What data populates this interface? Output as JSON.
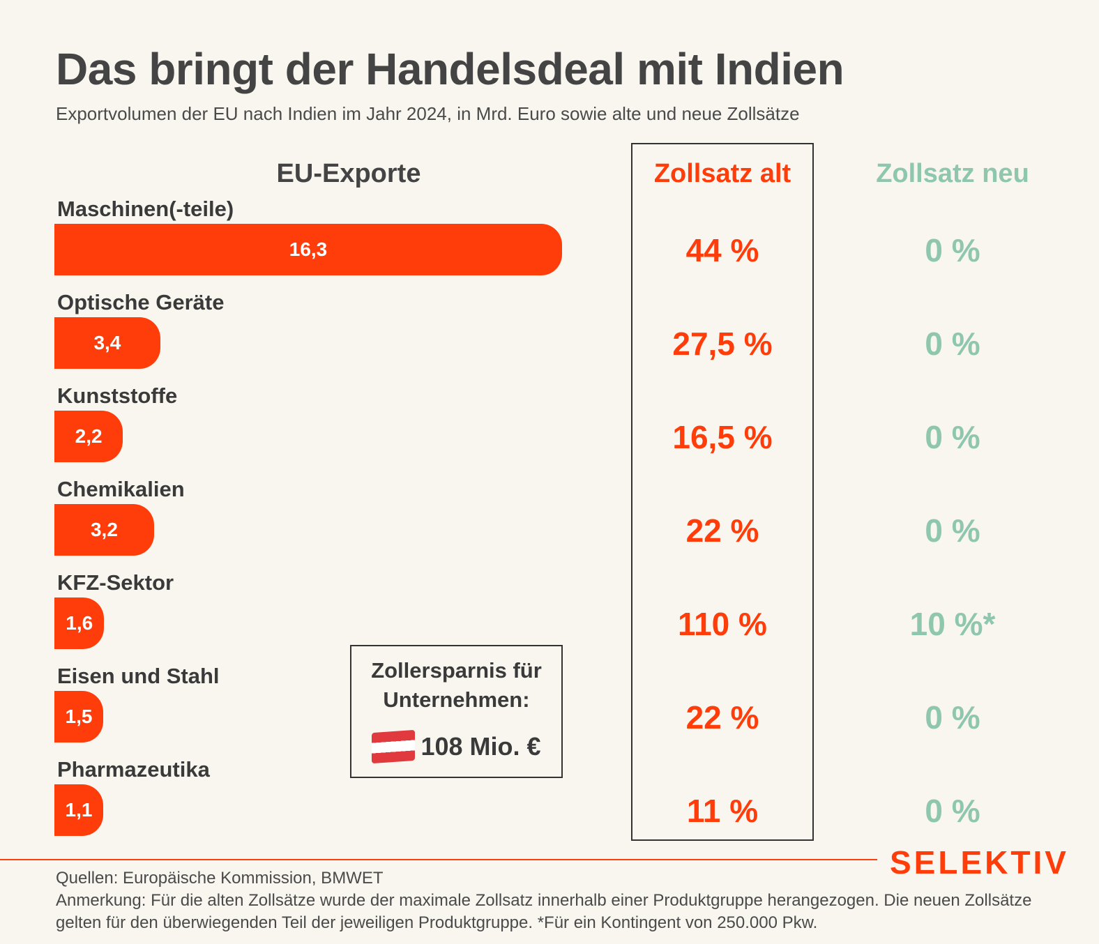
{
  "header": {
    "title": "Das bringt der Handelsdeal mit Indien",
    "subtitle": "Exportvolumen der EU nach Indien im Jahr 2024, in Mrd. Euro sowie alte und neue Zollsätze"
  },
  "columns": {
    "exports": "EU-Exporte",
    "old_rate": "Zollsatz alt",
    "new_rate": "Zollsatz neu"
  },
  "chart_data": {
    "type": "bar",
    "orientation": "horizontal",
    "title": "Das bringt der Handelsdeal mit Indien",
    "subtitle": "Exportvolumen der EU nach Indien im Jahr 2024, in Mrd. Euro sowie alte und neue Zollsätze",
    "categories": [
      "Maschinen(-teile)",
      "Optische Geräte",
      "Kunststoffe",
      "Chemikalien",
      "KFZ-Sektor",
      "Eisen und Stahl",
      "Pharmazeutika"
    ],
    "values": [
      16.3,
      3.4,
      2.2,
      3.2,
      1.6,
      1.5,
      1.1
    ],
    "value_labels": [
      "16,3",
      "3,4",
      "2,2",
      "3,2",
      "1,6",
      "1,5",
      "1,1"
    ],
    "old_rates": [
      "44 %",
      "27,5 %",
      "16,5 %",
      "22 %",
      "110 %",
      "22 %",
      "11 %"
    ],
    "new_rates": [
      "0 %",
      "0 %",
      "0 %",
      "0 %",
      "10 %*",
      "0 %",
      "0 %"
    ],
    "bar_color": "#ff3d0a",
    "old_rate_color": "#ff3d0a",
    "new_rate_color": "#8ec6ae"
  },
  "savings_box": {
    "text": "Zollersparnis für Unternehmen:",
    "flag": "austria-flag-icon",
    "amount": "108 Mio. €"
  },
  "brand": {
    "logo": "SELEKTIV",
    "color": "#ff3d0a"
  },
  "footer": {
    "sources": "Quellen: Europäische Kommission, BMWET",
    "note": "Anmerkung: Für die alten Zollsätze wurde der maximale Zollsatz innerhalb einer Produktgruppe herangezogen. Die neuen Zollsätze gelten für den überwiegenden Teil der jeweiligen Produktgruppe. *Für ein Kontingent von 250.000 Pkw."
  }
}
